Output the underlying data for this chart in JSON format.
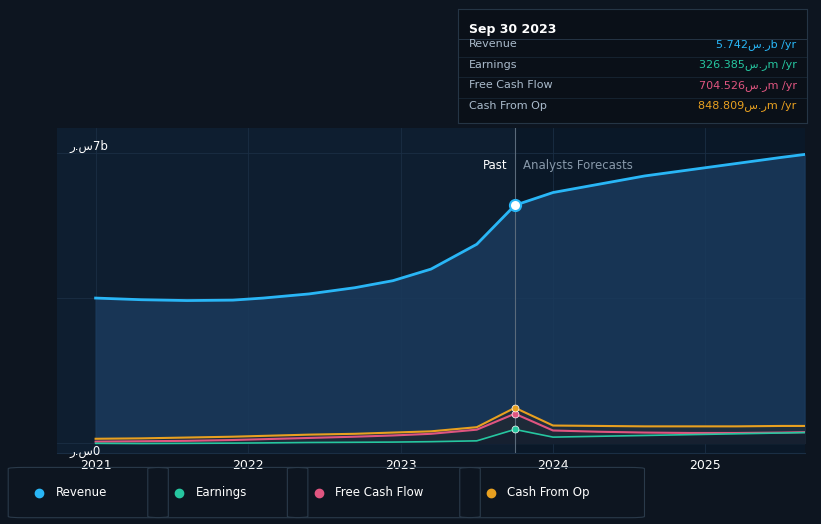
{
  "bg_color": "#0d1520",
  "plot_bg_past": "#0e1e30",
  "plot_bg_future": "#0a1828",
  "top_bar_color": "#080f1a",
  "revenue_color": "#29b6f6",
  "earnings_color": "#26c6a0",
  "fcf_color": "#e05580",
  "cashop_color": "#e8a020",
  "revenue_fill": "#1a3a5c",
  "earnings_fill": "#0d3028",
  "fcf_fill": "#3a1020",
  "cashop_fill": "#302010",
  "bottom_fill": "#1a2535",
  "grid_color": "#1a2e44",
  "divider_color": "#5a6a7a",
  "ylabel_top": "ر.س7b",
  "ylabel_bot": "ر.س0",
  "past_label": "Past",
  "forecast_label": "Analysts Forecasts",
  "divider_x": 2023.75,
  "marker_x": 2023.75,
  "xlim": [
    2020.75,
    2025.65
  ],
  "ylim": [
    -0.25,
    7.6
  ],
  "xticks": [
    2021,
    2022,
    2023,
    2024,
    2025
  ],
  "revenue_x": [
    2021.0,
    2021.3,
    2021.6,
    2021.9,
    2022.1,
    2022.4,
    2022.7,
    2022.95,
    2023.2,
    2023.5,
    2023.75,
    2024.0,
    2024.3,
    2024.6,
    2024.9,
    2025.2,
    2025.5,
    2025.65
  ],
  "revenue_y": [
    3.5,
    3.46,
    3.44,
    3.45,
    3.5,
    3.6,
    3.75,
    3.92,
    4.2,
    4.8,
    5.742,
    6.05,
    6.25,
    6.45,
    6.6,
    6.75,
    6.9,
    6.97
  ],
  "cashop_x": [
    2021.0,
    2021.3,
    2021.6,
    2021.9,
    2022.1,
    2022.4,
    2022.7,
    2022.95,
    2023.2,
    2023.5,
    2023.75,
    2024.0,
    2024.3,
    2024.6,
    2024.9,
    2025.2,
    2025.5,
    2025.65
  ],
  "cashop_y": [
    0.1,
    0.11,
    0.13,
    0.15,
    0.17,
    0.2,
    0.22,
    0.25,
    0.28,
    0.38,
    0.849,
    0.42,
    0.41,
    0.4,
    0.4,
    0.4,
    0.41,
    0.41
  ],
  "fcf_x": [
    2021.0,
    2021.3,
    2021.6,
    2021.9,
    2022.1,
    2022.4,
    2022.7,
    2022.95,
    2023.2,
    2023.5,
    2023.75,
    2024.0,
    2024.3,
    2024.6,
    2024.9,
    2025.2,
    2025.5,
    2025.65
  ],
  "fcf_y": [
    0.03,
    0.04,
    0.05,
    0.07,
    0.09,
    0.12,
    0.15,
    0.18,
    0.22,
    0.32,
    0.705,
    0.3,
    0.27,
    0.25,
    0.24,
    0.24,
    0.25,
    0.26
  ],
  "earnings_x": [
    2021.0,
    2021.3,
    2021.6,
    2021.9,
    2022.1,
    2022.4,
    2022.7,
    2022.95,
    2023.2,
    2023.5,
    2023.75,
    2024.0,
    2024.3,
    2024.6,
    2024.9,
    2025.2,
    2025.5,
    2025.65
  ],
  "earnings_y": [
    -0.01,
    -0.015,
    -0.01,
    -0.005,
    0.0,
    0.01,
    0.015,
    0.02,
    0.03,
    0.05,
    0.326,
    0.14,
    0.16,
    0.18,
    0.2,
    0.22,
    0.24,
    0.25
  ],
  "tooltip_title": "Sep 30 2023",
  "tooltip_rows": [
    {
      "label": "Revenue",
      "value": "5.742س.رb /yr",
      "color": "#29b6f6"
    },
    {
      "label": "Earnings",
      "value": "326.385س.رm /yr",
      "color": "#26c6a0"
    },
    {
      "label": "Free Cash Flow",
      "value": "704.526س.رm /yr",
      "color": "#e05580"
    },
    {
      "label": "Cash From Op",
      "value": "848.809س.رm /yr",
      "color": "#e8a020"
    }
  ],
  "legend_items": [
    {
      "label": "Revenue",
      "color": "#29b6f6"
    },
    {
      "label": "Earnings",
      "color": "#26c6a0"
    },
    {
      "label": "Free Cash Flow",
      "color": "#e05580"
    },
    {
      "label": "Cash From Op",
      "color": "#e8a020"
    }
  ]
}
